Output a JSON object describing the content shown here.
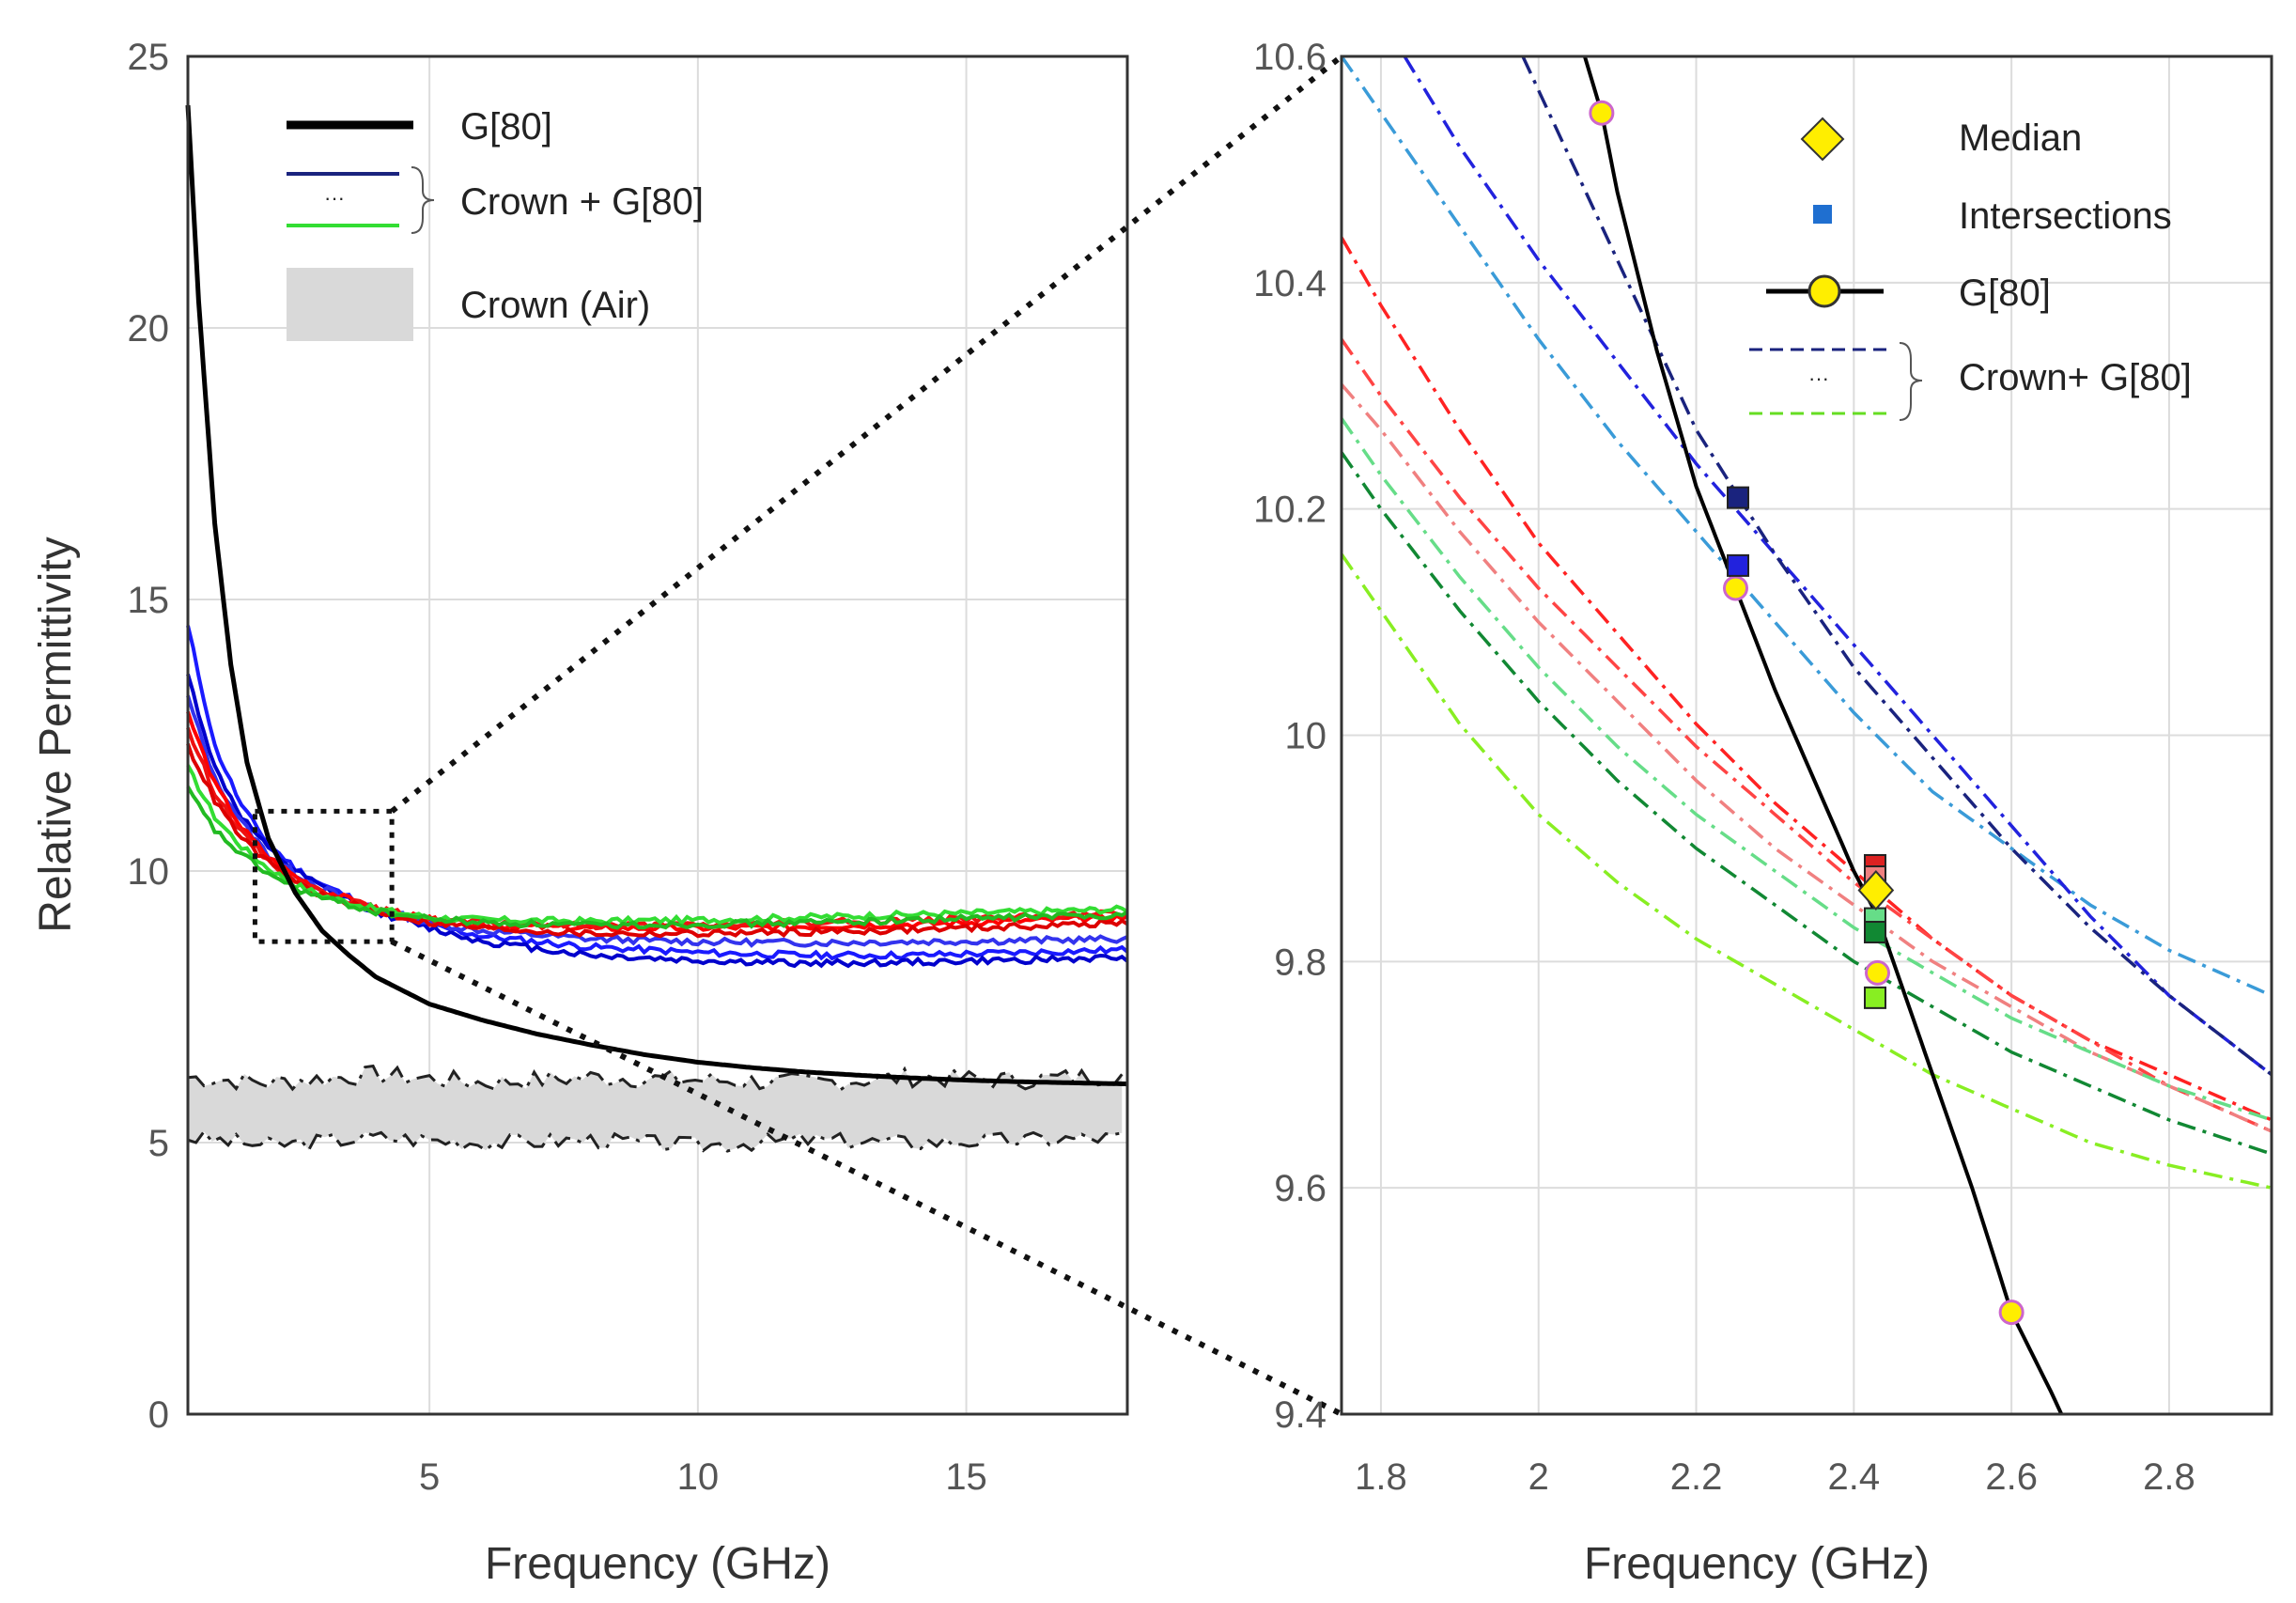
{
  "chart_data": [
    {
      "type": "line",
      "panel": "left",
      "xlabel": "Frequency (GHz)",
      "ylabel": "Relative Permittivity",
      "xlim": [
        0.5,
        18
      ],
      "ylim": [
        0,
        25
      ],
      "xticks": [
        5,
        10,
        15
      ],
      "yticks": [
        0,
        5,
        10,
        15,
        20,
        25
      ],
      "grid": true,
      "legend": {
        "position": "top-left",
        "entries": [
          "G[80]",
          "Crown + G[80]",
          "Crown (Air)"
        ],
        "crown_dotted_glyph": "···"
      },
      "series": [
        {
          "name": "G[80]",
          "color": "#000000",
          "x": [
            0.5,
            0.7,
            1,
            1.3,
            1.6,
            2,
            2.5,
            3,
            3.5,
            4,
            5,
            6,
            7,
            8,
            9,
            10,
            11,
            12,
            13,
            14,
            15,
            16,
            17,
            18
          ],
          "y": [
            24.1,
            20.5,
            16.4,
            13.8,
            12.0,
            10.6,
            9.6,
            8.9,
            8.45,
            8.05,
            7.55,
            7.25,
            7.0,
            6.8,
            6.62,
            6.48,
            6.38,
            6.3,
            6.24,
            6.19,
            6.15,
            6.12,
            6.1,
            6.08
          ]
        },
        {
          "name": "Crown + G[80] (blue 1)",
          "color": "#1a1aff",
          "x": [
            0.5,
            1,
            1.5,
            2,
            2.5,
            3,
            4,
            5,
            6,
            8,
            10,
            12,
            14,
            16,
            18
          ],
          "y": [
            14.5,
            12.3,
            11.2,
            10.5,
            10.05,
            9.75,
            9.3,
            9.0,
            8.8,
            8.6,
            8.5,
            8.45,
            8.45,
            8.5,
            8.55
          ]
        },
        {
          "name": "Crown + G[80] (blue 2)",
          "color": "#0000cc",
          "x": [
            0.5,
            1,
            1.5,
            2,
            2.5,
            3,
            4,
            5,
            6,
            8,
            10,
            12,
            14,
            16,
            18
          ],
          "y": [
            13.6,
            11.9,
            11.0,
            10.4,
            10.0,
            9.7,
            9.25,
            8.95,
            8.7,
            8.45,
            8.35,
            8.3,
            8.32,
            8.36,
            8.4
          ]
        },
        {
          "name": "Crown + G[80] (blue 3)",
          "color": "#3333ee",
          "x": [
            0.5,
            1,
            1.5,
            2,
            2.5,
            3,
            4,
            5,
            6,
            8,
            10,
            12,
            14,
            16,
            18
          ],
          "y": [
            13.2,
            11.7,
            10.9,
            10.3,
            9.95,
            9.68,
            9.3,
            9.05,
            8.9,
            8.75,
            8.7,
            8.68,
            8.7,
            8.72,
            8.75
          ]
        },
        {
          "name": "Crown + G[80] (red 1)",
          "color": "#ff0000",
          "x": [
            0.5,
            1,
            1.5,
            2,
            2.5,
            3,
            4,
            5,
            6,
            8,
            10,
            12,
            14,
            16,
            18
          ],
          "y": [
            12.9,
            11.6,
            10.8,
            10.25,
            9.9,
            9.65,
            9.3,
            9.1,
            9.0,
            8.95,
            8.95,
            8.98,
            9.02,
            9.08,
            9.15
          ]
        },
        {
          "name": "Crown + G[80] (red 2)",
          "color": "#ee1111",
          "x": [
            0.5,
            1,
            1.5,
            2,
            2.5,
            3,
            4,
            5,
            6,
            8,
            10,
            12,
            14,
            16,
            18
          ],
          "y": [
            12.6,
            11.45,
            10.7,
            10.2,
            9.85,
            9.62,
            9.3,
            9.12,
            9.05,
            9.0,
            9.0,
            9.05,
            9.1,
            9.15,
            9.22
          ]
        },
        {
          "name": "Crown + G[80] (red 3)",
          "color": "#dd0000",
          "x": [
            0.5,
            1,
            1.5,
            2,
            2.5,
            3,
            4,
            5,
            6,
            8,
            10,
            12,
            14,
            16,
            18
          ],
          "y": [
            12.3,
            11.3,
            10.6,
            10.15,
            9.8,
            9.55,
            9.25,
            9.05,
            8.95,
            8.85,
            8.85,
            8.88,
            8.92,
            8.98,
            9.05
          ]
        },
        {
          "name": "Crown + G[80] (green 1)",
          "color": "#33dd33",
          "x": [
            0.5,
            1,
            1.5,
            2,
            2.5,
            3,
            4,
            5,
            6,
            8,
            10,
            12,
            14,
            16,
            18
          ],
          "y": [
            11.9,
            11.0,
            10.45,
            10.05,
            9.75,
            9.55,
            9.3,
            9.15,
            9.1,
            9.08,
            9.1,
            9.15,
            9.2,
            9.25,
            9.3
          ]
        },
        {
          "name": "Crown + G[80] (green 2)",
          "color": "#22bb22",
          "x": [
            0.5,
            1,
            1.5,
            2,
            2.5,
            3,
            4,
            5,
            6,
            8,
            10,
            12,
            14,
            16,
            18
          ],
          "y": [
            11.5,
            10.75,
            10.3,
            9.95,
            9.68,
            9.5,
            9.25,
            9.12,
            9.05,
            9.0,
            9.02,
            9.05,
            9.1,
            9.15,
            9.2
          ]
        }
      ],
      "band": {
        "name": "Crown (Air)",
        "color": "#d9d9d9",
        "x": [
          0.5,
          2,
          4,
          6,
          8,
          10,
          12,
          14,
          16,
          18
        ],
        "upper": [
          6.2,
          6.1,
          6.25,
          6.1,
          6.2,
          6.15,
          6.1,
          6.2,
          6.15,
          6.25
        ],
        "lower": [
          5.1,
          4.95,
          5.1,
          5.0,
          5.05,
          4.95,
          5.05,
          5.0,
          5.05,
          5.1
        ]
      },
      "zoom_box": {
        "x": [
          1.75,
          4.3
        ],
        "y": [
          8.7,
          11.1
        ]
      }
    },
    {
      "type": "line",
      "panel": "right",
      "xlabel": "Frequency (GHz)",
      "ylabel": "",
      "xlim": [
        1.75,
        2.93
      ],
      "ylim": [
        9.4,
        10.6
      ],
      "xticks": [
        1.8,
        2,
        2.2,
        2.4,
        2.6,
        2.8
      ],
      "yticks": [
        9.4,
        9.6,
        9.8,
        10,
        10.2,
        10.4,
        10.6
      ],
      "ytick_labels": [
        "9.4",
        "9.6",
        "9.8",
        "10",
        "10.2",
        "10.4",
        "10.6"
      ],
      "xtick_labels": [
        "1.8",
        "2",
        "2.2",
        "2.4",
        "2.6",
        "2.8"
      ],
      "grid": true,
      "legend": {
        "position": "top-right",
        "entries": [
          "Median",
          "Intersections",
          "G[80]",
          "Crown+ G[80]"
        ],
        "crown_dotted_glyph": "···"
      },
      "g80": {
        "color": "#000000",
        "x": [
          2.05,
          2.08,
          2.1,
          2.15,
          2.2,
          2.25,
          2.3,
          2.35,
          2.4,
          2.43,
          2.45,
          2.5,
          2.55,
          2.6,
          2.65,
          2.67
        ],
        "y": [
          10.62,
          10.55,
          10.48,
          10.34,
          10.22,
          10.13,
          10.04,
          9.96,
          9.88,
          9.84,
          9.8,
          9.7,
          9.6,
          9.49,
          9.42,
          9.39
        ],
        "markers": [
          {
            "x": 2.08,
            "y": 10.55
          },
          {
            "x": 2.25,
            "y": 10.13
          },
          {
            "x": 2.43,
            "y": 9.79
          },
          {
            "x": 2.6,
            "y": 9.49
          }
        ]
      },
      "series": [
        {
          "name": "Crown+ G[80] (light blue)",
          "color": "#3a9bd8",
          "x": [
            1.75,
            1.8,
            1.9,
            2.0,
            2.1,
            2.2,
            2.3,
            2.4,
            2.5,
            2.6,
            2.7,
            2.8,
            2.93
          ],
          "y": [
            10.6,
            10.55,
            10.45,
            10.35,
            10.26,
            10.18,
            10.1,
            10.02,
            9.95,
            9.9,
            9.85,
            9.81,
            9.77
          ]
        },
        {
          "name": "Crown+ G[80] (blue)",
          "color": "#2222dd",
          "x": [
            1.83,
            1.9,
            2.0,
            2.1,
            2.2,
            2.3,
            2.4,
            2.5,
            2.6,
            2.7,
            2.8,
            2.93
          ],
          "y": [
            10.6,
            10.52,
            10.42,
            10.33,
            10.24,
            10.16,
            10.08,
            10.0,
            9.92,
            9.84,
            9.77,
            9.7
          ]
        },
        {
          "name": "Crown+ G[80] (navy)",
          "color": "#1a237e",
          "x": [
            1.98,
            2.1,
            2.2,
            2.3,
            2.4,
            2.5,
            2.6,
            2.7,
            2.8,
            2.93
          ],
          "y": [
            10.6,
            10.42,
            10.27,
            10.16,
            10.06,
            9.98,
            9.9,
            9.83,
            9.77,
            9.7
          ]
        },
        {
          "name": "Crown+ G[80] (red 1)",
          "color": "#ff2222",
          "x": [
            1.75,
            1.8,
            1.9,
            2.0,
            2.1,
            2.2,
            2.3,
            2.4,
            2.5,
            2.6,
            2.7,
            2.8,
            2.93
          ],
          "y": [
            10.44,
            10.38,
            10.27,
            10.17,
            10.09,
            10.01,
            9.94,
            9.88,
            9.82,
            9.77,
            9.73,
            9.7,
            9.66
          ]
        },
        {
          "name": "Crown+ G[80] (red 2)",
          "color": "#ff4444",
          "x": [
            1.75,
            1.8,
            1.9,
            2.0,
            2.1,
            2.2,
            2.3,
            2.4,
            2.5,
            2.6,
            2.7,
            2.8,
            2.93
          ],
          "y": [
            10.35,
            10.3,
            10.21,
            10.13,
            10.06,
            9.99,
            9.93,
            9.87,
            9.82,
            9.77,
            9.73,
            9.69,
            9.65
          ]
        },
        {
          "name": "Crown+ G[80] (salmon)",
          "color": "#f08080",
          "x": [
            1.75,
            1.8,
            1.9,
            2.0,
            2.1,
            2.2,
            2.3,
            2.4,
            2.5,
            2.6,
            2.7,
            2.8,
            2.93
          ],
          "y": [
            10.31,
            10.27,
            10.18,
            10.1,
            10.03,
            9.96,
            9.9,
            9.85,
            9.8,
            9.76,
            9.72,
            9.69,
            9.65
          ]
        },
        {
          "name": "Crown+ G[80] (light green)",
          "color": "#66dd88",
          "x": [
            1.75,
            1.8,
            1.9,
            2.0,
            2.1,
            2.2,
            2.3,
            2.4,
            2.5,
            2.6,
            2.7,
            2.8,
            2.93
          ],
          "y": [
            10.28,
            10.23,
            10.14,
            10.06,
            9.99,
            9.93,
            9.88,
            9.83,
            9.79,
            9.75,
            9.72,
            9.69,
            9.66
          ]
        },
        {
          "name": "Crown+ G[80] (dark green)",
          "color": "#118833",
          "x": [
            1.75,
            1.8,
            1.9,
            2.0,
            2.1,
            2.2,
            2.3,
            2.4,
            2.5,
            2.6,
            2.7,
            2.8,
            2.93
          ],
          "y": [
            10.25,
            10.2,
            10.11,
            10.03,
            9.96,
            9.9,
            9.85,
            9.8,
            9.76,
            9.72,
            9.69,
            9.66,
            9.63
          ]
        },
        {
          "name": "Crown+ G[80] (lime)",
          "color": "#88ee22",
          "x": [
            1.75,
            1.8,
            1.9,
            2.0,
            2.1,
            2.2,
            2.3,
            2.4,
            2.5,
            2.6,
            2.7,
            2.8,
            2.93
          ],
          "y": [
            10.16,
            10.11,
            10.01,
            9.93,
            9.87,
            9.82,
            9.78,
            9.74,
            9.7,
            9.67,
            9.64,
            9.62,
            9.6
          ]
        }
      ],
      "intersections": [
        {
          "x": 2.253,
          "y": 10.21,
          "color": "#1a237e"
        },
        {
          "x": 2.253,
          "y": 10.15,
          "color": "#2222dd"
        },
        {
          "x": 2.427,
          "y": 9.885,
          "color": "#dd2222"
        },
        {
          "x": 2.427,
          "y": 9.875,
          "color": "#f08080"
        },
        {
          "x": 2.427,
          "y": 9.838,
          "color": "#66dd88"
        },
        {
          "x": 2.427,
          "y": 9.826,
          "color": "#118833"
        },
        {
          "x": 2.427,
          "y": 9.768,
          "color": "#88ee22"
        }
      ],
      "median": {
        "x": 2.428,
        "y": 9.863,
        "color": "#ffee00"
      }
    }
  ]
}
